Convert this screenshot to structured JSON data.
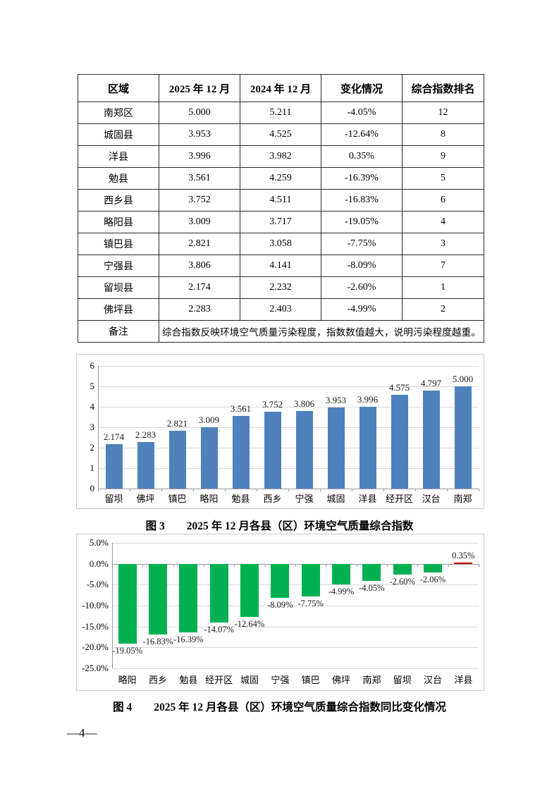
{
  "page_number": "—4—",
  "table": {
    "headers": [
      "区域",
      "2025 年 12 月",
      "2024 年 12 月",
      "变化情况",
      "综合指数排名"
    ],
    "rows": [
      [
        "南郑区",
        "5.000",
        "5.211",
        "-4.05%",
        "12"
      ],
      [
        "城固县",
        "3.953",
        "4.525",
        "-12.64%",
        "8"
      ],
      [
        "洋县",
        "3.996",
        "3.982",
        "0.35%",
        "9"
      ],
      [
        "勉县",
        "3.561",
        "4.259",
        "-16.39%",
        "5"
      ],
      [
        "西乡县",
        "3.752",
        "4.511",
        "-16.83%",
        "6"
      ],
      [
        "略阳县",
        "3.009",
        "3.717",
        "-19.05%",
        "4"
      ],
      [
        "镇巴县",
        "2.821",
        "3.058",
        "-7.75%",
        "3"
      ],
      [
        "宁强县",
        "3.806",
        "4.141",
        "-8.09%",
        "7"
      ],
      [
        "留坝县",
        "2.174",
        "2.232",
        "-2.60%",
        "1"
      ],
      [
        "佛坪县",
        "2.283",
        "2.403",
        "-4.99%",
        "2"
      ]
    ],
    "remark_label": "备注",
    "remark_text": "综合指数反映环境空气质量污染程度，指数数值越大，说明污染程度越重。"
  },
  "chart_data": [
    {
      "type": "bar",
      "caption": "图 3　　2025 年 12 月各县（区）环境空气质量综合指数",
      "categories": [
        "留坝",
        "佛坪",
        "镇巴",
        "略阳",
        "勉县",
        "西乡",
        "宁强",
        "城固",
        "洋县",
        "经开区",
        "汉台",
        "南郑"
      ],
      "values": [
        2.174,
        2.283,
        2.821,
        3.009,
        3.561,
        3.752,
        3.806,
        3.953,
        3.996,
        4.575,
        4.797,
        5.0
      ],
      "labels": [
        "2.174",
        "2.283",
        "2.821",
        "3.009",
        "3.561",
        "3.752",
        "3.806",
        "3.953",
        "3.996",
        "4.575",
        "4.797",
        "5.000"
      ],
      "ylim": [
        0,
        6
      ],
      "yticks": [
        "6",
        "5",
        "4",
        "3",
        "2",
        "1",
        "0"
      ],
      "bar_color": "#4F81BD",
      "grid": true,
      "legend": false
    },
    {
      "type": "bar",
      "caption": "图 4　　2025 年 12 月各县（区）环境空气质量综合指数同比变化情况",
      "categories": [
        "略阳",
        "西乡",
        "勉县",
        "经开区",
        "城固",
        "宁强",
        "镇巴",
        "佛坪",
        "南郑",
        "留坝",
        "汉台",
        "洋县"
      ],
      "values": [
        -19.05,
        -16.83,
        -16.39,
        -14.07,
        -12.64,
        -8.09,
        -7.75,
        -4.99,
        -4.05,
        -2.6,
        -2.06,
        0.35
      ],
      "labels": [
        "-19.05%",
        "-16.83%",
        "-16.39%",
        "-14.07%",
        "-12.64%",
        "-8.09%",
        "-7.75%",
        "-4.99%",
        "-4.05%",
        "-2.60%",
        "-2.06%",
        "0.35%"
      ],
      "ylim": [
        -25,
        5
      ],
      "yticks": [
        "5.0%",
        "0.0%",
        "-5.0%",
        "-10.0%",
        "-15.0%",
        "-20.0%",
        "-25.0%"
      ],
      "bar_color": "#00B050",
      "positive_color": "#C00000",
      "grid": true,
      "legend": false
    }
  ]
}
